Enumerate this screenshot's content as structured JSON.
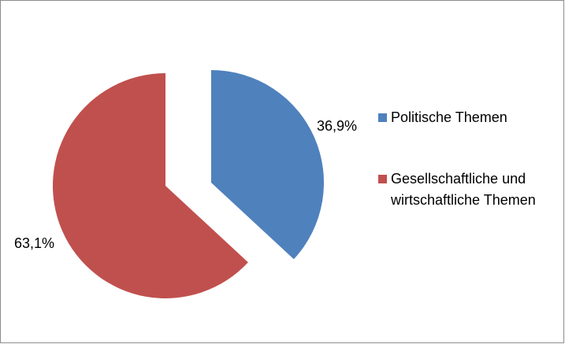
{
  "chart_data": {
    "type": "pie",
    "categories": [
      "Politische Themen",
      "Gesellschaftliche und wirtschaftliche Themen"
    ],
    "values": [
      36.9,
      63.1
    ],
    "value_labels": [
      "36,9%",
      "63,1%"
    ],
    "colors": [
      "#4f81bd",
      "#c0504d"
    ],
    "exploded": true,
    "legend_position": "right"
  }
}
